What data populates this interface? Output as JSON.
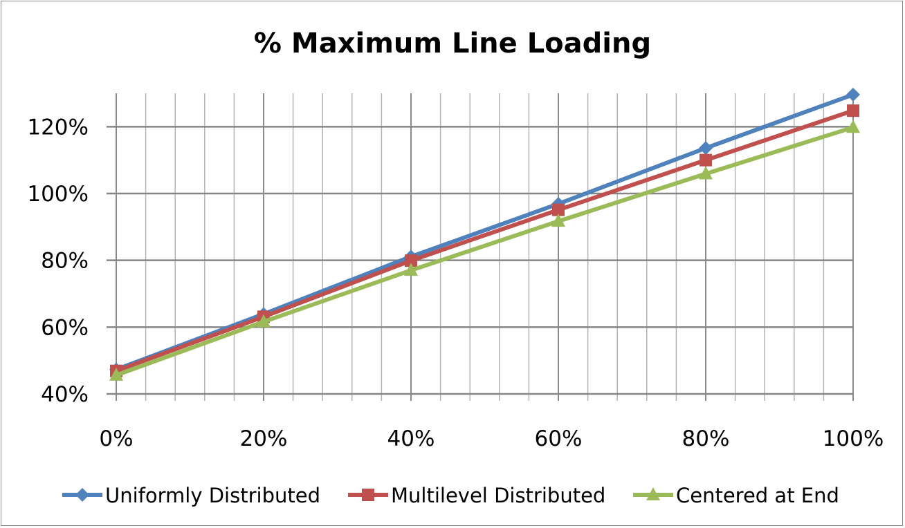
{
  "chart_data": {
    "type": "line",
    "title": "% Maximum Line Loading",
    "xlabel": "",
    "ylabel": "",
    "x": [
      0,
      20,
      40,
      60,
      80,
      100
    ],
    "x_tick_labels": [
      "0%",
      "20%",
      "40%",
      "60%",
      "80%",
      "100%"
    ],
    "y_ticks": [
      40,
      60,
      80,
      100,
      120
    ],
    "y_tick_labels": [
      "40%",
      "60%",
      "80%",
      "100%",
      "120%"
    ],
    "xlim": [
      0,
      100
    ],
    "ylim": [
      40,
      130
    ],
    "x_minor_step": 4,
    "grid": true,
    "legend_position": "bottom",
    "series": [
      {
        "name": "Uniformly Distributed",
        "color": "#4F81BD",
        "marker": "diamond",
        "values": [
          47.3,
          63.9,
          81.1,
          96.9,
          113.6,
          129.6
        ]
      },
      {
        "name": "Multilevel Distributed",
        "color": "#C0504D",
        "marker": "square",
        "values": [
          46.9,
          63.1,
          79.9,
          95.1,
          110.0,
          124.8
        ]
      },
      {
        "name": "Centered at End",
        "color": "#9BBB59",
        "marker": "triangle",
        "values": [
          45.6,
          61.6,
          77.0,
          91.7,
          105.9,
          119.8
        ]
      }
    ]
  }
}
